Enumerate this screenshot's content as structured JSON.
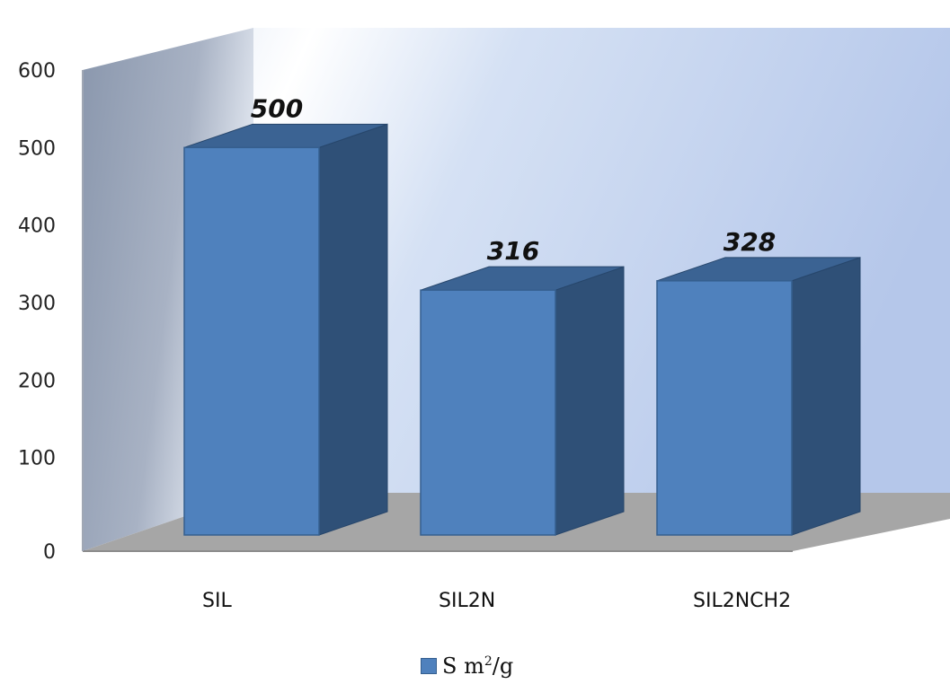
{
  "chart_data": {
    "type": "bar",
    "categories": [
      "SIL",
      "SIL2N",
      "SIL2NCH2"
    ],
    "series": [
      {
        "name": "S m²/g",
        "values": [
          500,
          316,
          328
        ]
      }
    ],
    "data_labels": [
      "500",
      "316",
      "328"
    ],
    "ylim": [
      0,
      600
    ],
    "yticks": [
      0,
      100,
      200,
      300,
      400,
      500,
      600
    ],
    "grid": false,
    "legend_position": "bottom",
    "style": "3d-column",
    "colors": {
      "bar_front": "#4f81bd",
      "bar_side": "#2f5077",
      "bar_top": "#3b6393",
      "floor": "#a6a6a6",
      "back_wall": "#b7cbeb",
      "side_wall": "#8d9ab3"
    }
  },
  "legend": {
    "label_main": "S m",
    "label_sup": "2",
    "label_tail": "/g"
  }
}
